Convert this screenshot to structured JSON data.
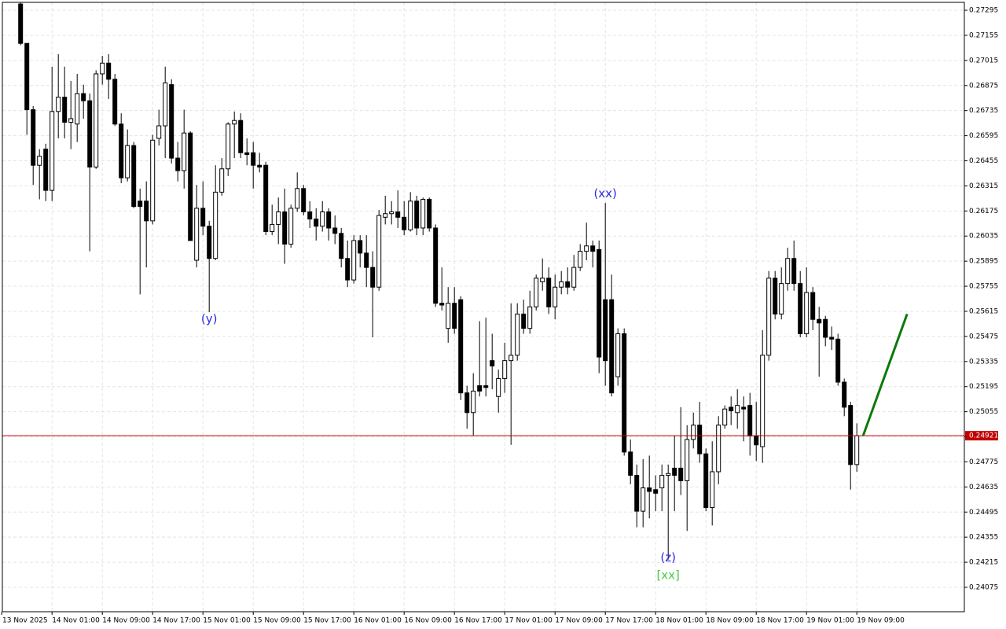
{
  "chart_data": {
    "type": "candlestick",
    "ylim": [
      0.23939,
      0.27339
    ],
    "xlim": [
      -2.9,
      150.1
    ],
    "yticks": [
      0.27295,
      0.27155,
      0.27015,
      0.26875,
      0.26735,
      0.26595,
      0.26455,
      0.26315,
      0.26175,
      0.26035,
      0.25895,
      0.25755,
      0.25615,
      0.25475,
      0.25335,
      0.25195,
      0.25055,
      0.24915,
      0.24775,
      0.24635,
      0.24495,
      0.24355,
      0.24215,
      0.24075
    ],
    "xticks": [
      {
        "value": -3,
        "label": "13 Nov 2025"
      },
      {
        "value": 5,
        "label": "14 Nov 01:00"
      },
      {
        "value": 13,
        "label": "14 Nov 09:00"
      },
      {
        "value": 21,
        "label": "14 Nov 17:00"
      },
      {
        "value": 29,
        "label": "15 Nov 01:00"
      },
      {
        "value": 37,
        "label": "15 Nov 09:00"
      },
      {
        "value": 45,
        "label": "15 Nov 17:00"
      },
      {
        "value": 53,
        "label": "16 Nov 01:00"
      },
      {
        "value": 61,
        "label": "16 Nov 09:00"
      },
      {
        "value": 69,
        "label": "16 Nov 17:00"
      },
      {
        "value": 77,
        "label": "17 Nov 01:00"
      },
      {
        "value": 85,
        "label": "17 Nov 09:00"
      },
      {
        "value": 93,
        "label": "17 Nov 17:00"
      },
      {
        "value": 101,
        "label": "18 Nov 01:00"
      },
      {
        "value": 109,
        "label": "18 Nov 09:00"
      },
      {
        "value": 117,
        "label": "18 Nov 17:00"
      },
      {
        "value": 125,
        "label": "19 Nov 01:00"
      },
      {
        "value": 133,
        "label": "19 Nov 09:00"
      }
    ],
    "grid": true,
    "up_color": "#ffffff",
    "down_color": "#000000",
    "wick_color": "#000000",
    "x": [
      0,
      1,
      2,
      3,
      4,
      5,
      6,
      7,
      8,
      9,
      10,
      11,
      12,
      13,
      14,
      15,
      16,
      17,
      18,
      19,
      20,
      21,
      22,
      23,
      24,
      25,
      26,
      27,
      28,
      29,
      30,
      31,
      32,
      33,
      34,
      35,
      36,
      37,
      38,
      39,
      40,
      41,
      42,
      43,
      44,
      45,
      46,
      47,
      48,
      49,
      50,
      51,
      52,
      53,
      54,
      55,
      56,
      57,
      58,
      59,
      60,
      61,
      62,
      63,
      64,
      65,
      66,
      67,
      68,
      69,
      70,
      71,
      72,
      73,
      74,
      75,
      76,
      77,
      78,
      79,
      80,
      81,
      82,
      83,
      84,
      85,
      86,
      87,
      88,
      89,
      90,
      91,
      92,
      93,
      94,
      95,
      96,
      97,
      98,
      99,
      100,
      101,
      102,
      103,
      104,
      105,
      106,
      107,
      108,
      109,
      110,
      111,
      112,
      113,
      114,
      115,
      116,
      117,
      118,
      119,
      120,
      121,
      122,
      123,
      124,
      125,
      126,
      127,
      128,
      129,
      130,
      131,
      132,
      133
    ],
    "open": [
      0.2733,
      0.2711,
      0.2674,
      0.2643,
      0.2652,
      0.2629,
      0.2673,
      0.2681,
      0.2667,
      0.2666,
      0.2683,
      0.2679,
      0.2642,
      0.2694,
      0.27,
      0.2691,
      0.2666,
      0.2636,
      0.2654,
      0.2623,
      0.2623,
      0.2612,
      0.2658,
      0.2665,
      0.2688,
      0.2647,
      0.264,
      0.2661,
      0.259,
      0.2619,
      0.2609,
      0.2591,
      0.2628,
      0.2641,
      0.2666,
      0.2668,
      0.265,
      0.265,
      0.2643,
      0.2643,
      0.2606,
      0.261,
      0.2617,
      0.2599,
      0.2619,
      0.263,
      0.2617,
      0.2613,
      0.2609,
      0.2617,
      0.2608,
      0.2605,
      0.2591,
      0.2579,
      0.2601,
      0.2594,
      0.2586,
      0.2575,
      0.2614,
      0.2616,
      0.2617,
      0.2614,
      0.2607,
      0.2623,
      0.2608,
      0.2624,
      0.2608,
      0.2566,
      0.2552,
      0.2566,
      0.2568,
      0.2516,
      0.2505,
      0.252,
      0.252,
      0.2534,
      0.2514,
      0.2524,
      0.2534,
      0.2537,
      0.256,
      0.2552,
      0.2564,
      0.2578,
      0.258,
      0.2564,
      0.2575,
      0.2578,
      0.2575,
      0.2586,
      0.2595,
      0.2598,
      0.2596,
      0.2568,
      0.2568,
      0.2525,
      0.2549,
      0.2483,
      0.247,
      0.245,
      0.2463,
      0.2462,
      0.2463,
      0.247,
      0.2474,
      0.2474,
      0.2467,
      0.249,
      0.2498,
      0.2482,
      0.2452,
      0.2472,
      0.2498,
      0.2508,
      0.2505,
      0.2508,
      0.2509,
      0.2492,
      0.2486,
      0.2537,
      0.258,
      0.256,
      0.2577,
      0.2591,
      0.2577,
      0.2549,
      0.2572,
      0.2557,
      0.2557,
      0.2547,
      0.2546,
      0.2522,
      0.2509,
      0.2476
    ],
    "high": [
      0.2734,
      0.2711,
      0.2676,
      0.2652,
      0.2655,
      0.2698,
      0.2705,
      0.2698,
      0.269,
      0.2694,
      0.2688,
      0.2683,
      0.2696,
      0.2704,
      0.2705,
      0.2694,
      0.2672,
      0.2663,
      0.2656,
      0.263,
      0.2634,
      0.266,
      0.2674,
      0.2698,
      0.2691,
      0.2656,
      0.2674,
      0.2662,
      0.2632,
      0.2634,
      0.2612,
      0.2643,
      0.2647,
      0.2667,
      0.2673,
      0.2672,
      0.2658,
      0.2656,
      0.265,
      0.2645,
      0.2621,
      0.2625,
      0.263,
      0.2621,
      0.2639,
      0.2632,
      0.2623,
      0.2619,
      0.2623,
      0.2619,
      0.2615,
      0.2608,
      0.2601,
      0.2604,
      0.2604,
      0.2604,
      0.2595,
      0.2618,
      0.2626,
      0.2623,
      0.2629,
      0.2623,
      0.2628,
      0.2626,
      0.2625,
      0.2625,
      0.261,
      0.2586,
      0.2575,
      0.2575,
      0.257,
      0.252,
      0.2527,
      0.2556,
      0.2558,
      0.2549,
      0.2529,
      0.2544,
      0.2566,
      0.2566,
      0.2568,
      0.2573,
      0.2582,
      0.2591,
      0.2586,
      0.2582,
      0.2584,
      0.2586,
      0.2593,
      0.2599,
      0.2611,
      0.2601,
      0.2601,
      0.2622,
      0.2582,
      0.2552,
      0.2552,
      0.249,
      0.2476,
      0.2479,
      0.2481,
      0.247,
      0.2476,
      0.2476,
      0.2492,
      0.2508,
      0.2498,
      0.2505,
      0.2511,
      0.2485,
      0.2489,
      0.2503,
      0.2509,
      0.2514,
      0.2518,
      0.2514,
      0.2516,
      0.2511,
      0.2551,
      0.2584,
      0.2584,
      0.2586,
      0.2597,
      0.2601,
      0.2584,
      0.2586,
      0.2575,
      0.2564,
      0.2559,
      0.2553,
      0.2549,
      0.2524,
      0.2511,
      0.2499
    ],
    "low": [
      0.271,
      0.266,
      0.2632,
      0.2624,
      0.2623,
      0.2623,
      0.2658,
      0.2658,
      0.2652,
      0.2656,
      0.2669,
      0.2595,
      0.2641,
      0.2688,
      0.268,
      0.2665,
      0.2633,
      0.2634,
      0.2619,
      0.2571,
      0.2586,
      0.261,
      0.2654,
      0.2647,
      0.2644,
      0.2634,
      0.263,
      0.2601,
      0.2586,
      0.2604,
      0.2561,
      0.259,
      0.2626,
      0.2637,
      0.2647,
      0.2647,
      0.2643,
      0.263,
      0.2639,
      0.2604,
      0.2604,
      0.2599,
      0.2588,
      0.2597,
      0.2617,
      0.2615,
      0.2608,
      0.2601,
      0.2606,
      0.2601,
      0.2599,
      0.2586,
      0.2575,
      0.2577,
      0.2586,
      0.2575,
      0.2547,
      0.2573,
      0.261,
      0.261,
      0.2608,
      0.2604,
      0.2606,
      0.2604,
      0.2604,
      0.2606,
      0.2564,
      0.2562,
      0.2544,
      0.2549,
      0.2512,
      0.2496,
      0.2492,
      0.2514,
      0.2514,
      0.2518,
      0.2505,
      0.2516,
      0.2487,
      0.2534,
      0.2549,
      0.2549,
      0.2562,
      0.2573,
      0.256,
      0.2557,
      0.2571,
      0.2571,
      0.2573,
      0.2584,
      0.259,
      0.2586,
      0.2527,
      0.252,
      0.2514,
      0.252,
      0.2481,
      0.2465,
      0.2441,
      0.2441,
      0.2446,
      0.245,
      0.245,
      0.2423,
      0.245,
      0.2459,
      0.2439,
      0.2485,
      0.2477,
      0.245,
      0.2442,
      0.2465,
      0.2496,
      0.2498,
      0.2496,
      0.2489,
      0.2481,
      0.2478,
      0.2477,
      0.2534,
      0.2557,
      0.2557,
      0.2573,
      0.2573,
      0.2547,
      0.2547,
      0.2551,
      0.2525,
      0.2542,
      0.254,
      0.252,
      0.2503,
      0.2462,
      0.2472
    ],
    "close": [
      0.2711,
      0.2674,
      0.2643,
      0.2648,
      0.2629,
      0.2673,
      0.2681,
      0.2667,
      0.2669,
      0.2683,
      0.2679,
      0.2642,
      0.2694,
      0.27,
      0.2691,
      0.2666,
      0.2636,
      0.2654,
      0.262,
      0.262,
      0.2612,
      0.2657,
      0.2665,
      0.2689,
      0.2647,
      0.264,
      0.2661,
      0.2601,
      0.2619,
      0.2609,
      0.2591,
      0.2628,
      0.2641,
      0.2666,
      0.2668,
      0.265,
      0.2649,
      0.2643,
      0.2642,
      0.2606,
      0.261,
      0.2617,
      0.2599,
      0.2619,
      0.263,
      0.2617,
      0.2613,
      0.2609,
      0.2617,
      0.2608,
      0.2605,
      0.2591,
      0.2579,
      0.2601,
      0.2594,
      0.2586,
      0.2575,
      0.2615,
      0.2616,
      0.2617,
      0.2614,
      0.2607,
      0.2623,
      0.2608,
      0.2624,
      0.2608,
      0.2566,
      0.2565,
      0.2566,
      0.2552,
      0.2516,
      0.2505,
      0.2517,
      0.2517,
      0.2519,
      0.2531,
      0.2524,
      0.2534,
      0.2537,
      0.256,
      0.2552,
      0.2564,
      0.258,
      0.258,
      0.2564,
      0.2575,
      0.2578,
      0.2575,
      0.2586,
      0.2595,
      0.2598,
      0.2595,
      0.2536,
      0.2534,
      0.2516,
      0.2549,
      0.2483,
      0.247,
      0.245,
      0.2463,
      0.2461,
      0.246,
      0.247,
      0.2471,
      0.247,
      0.2467,
      0.249,
      0.2498,
      0.2482,
      0.2452,
      0.2472,
      0.2498,
      0.2507,
      0.2506,
      0.2509,
      0.2507,
      0.2492,
      0.2487,
      0.2537,
      0.258,
      0.256,
      0.2577,
      0.2591,
      0.2577,
      0.2549,
      0.2572,
      0.2557,
      0.2555,
      0.2547,
      0.2546,
      0.2522,
      0.2508,
      0.2476,
      0.24921
    ],
    "current_price": {
      "value": 0.24921,
      "color": "#c00000"
    },
    "forecast": {
      "x": [
        134,
        141
      ],
      "y": [
        0.24921,
        0.256
      ],
      "color": "#0a7a0a"
    },
    "annotations": [
      {
        "text": "(y)",
        "x": 30,
        "y": 0.2557,
        "color": "#2a2ae0"
      },
      {
        "text": "(xx)",
        "x": 93,
        "y": 0.2627,
        "color": "#2a2ae0"
      },
      {
        "text": "(z)",
        "x": 103,
        "y": 0.2424,
        "color": "#2a2ae0"
      },
      {
        "text": "[xx]",
        "x": 103,
        "y": 0.2414,
        "color": "#4cc84c"
      }
    ]
  }
}
